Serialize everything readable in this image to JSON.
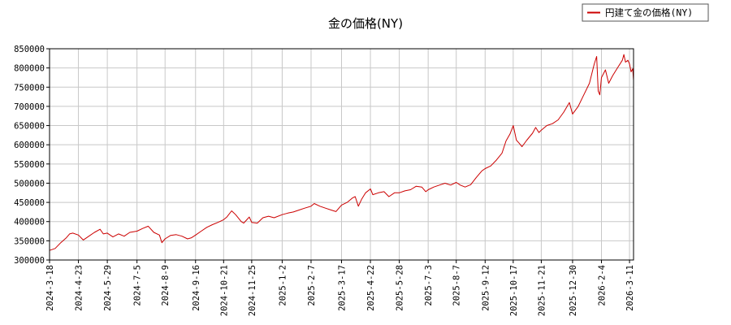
{
  "chart_data": {
    "type": "line",
    "title": "金の価格(NY)",
    "xlabel": "",
    "ylabel": "",
    "ylim": [
      300000,
      850000
    ],
    "yticks": [
      300000,
      350000,
      400000,
      450000,
      500000,
      550000,
      600000,
      650000,
      700000,
      750000,
      800000,
      850000
    ],
    "xlim": [
      "2024-3-18",
      "2026-3-16"
    ],
    "xticks": [
      "2024-3-18",
      "2024-4-23",
      "2024-5-29",
      "2024-7-5",
      "2024-8-9",
      "2024-9-16",
      "2024-10-21",
      "2024-11-25",
      "2025-1-2",
      "2025-2-7",
      "2025-3-17",
      "2025-4-22",
      "2025-5-28",
      "2025-7-3",
      "2025-8-7",
      "2025-9-12",
      "2025-10-17",
      "2025-11-21",
      "2025-12-30",
      "2026-2-4",
      "2026-3-11"
    ],
    "grid": true,
    "legend_position": "top-right",
    "line_color": "#cc0000",
    "series": [
      {
        "name": "円建て金の価格(NY)",
        "points": [
          [
            "2024-3-18",
            325000
          ],
          [
            "2024-3-25",
            330000
          ],
          [
            "2024-4-1",
            345000
          ],
          [
            "2024-4-8",
            358000
          ],
          [
            "2024-4-12",
            368000
          ],
          [
            "2024-4-16",
            370000
          ],
          [
            "2024-4-23",
            365000
          ],
          [
            "2024-4-29",
            352000
          ],
          [
            "2024-5-6",
            362000
          ],
          [
            "2024-5-13",
            372000
          ],
          [
            "2024-5-20",
            380000
          ],
          [
            "2024-5-24",
            368000
          ],
          [
            "2024-5-29",
            370000
          ],
          [
            "2024-6-5",
            360000
          ],
          [
            "2024-6-12",
            368000
          ],
          [
            "2024-6-19",
            362000
          ],
          [
            "2024-6-26",
            372000
          ],
          [
            "2024-7-5",
            375000
          ],
          [
            "2024-7-12",
            382000
          ],
          [
            "2024-7-19",
            388000
          ],
          [
            "2024-7-26",
            372000
          ],
          [
            "2024-8-2",
            365000
          ],
          [
            "2024-8-5",
            345000
          ],
          [
            "2024-8-9",
            355000
          ],
          [
            "2024-8-16",
            364000
          ],
          [
            "2024-8-23",
            366000
          ],
          [
            "2024-8-30",
            362000
          ],
          [
            "2024-9-6",
            355000
          ],
          [
            "2024-9-11",
            358000
          ],
          [
            "2024-9-16",
            365000
          ],
          [
            "2024-9-23",
            375000
          ],
          [
            "2024-9-30",
            385000
          ],
          [
            "2024-10-7",
            392000
          ],
          [
            "2024-10-14",
            398000
          ],
          [
            "2024-10-21",
            405000
          ],
          [
            "2024-10-25",
            412000
          ],
          [
            "2024-10-31",
            428000
          ],
          [
            "2024-11-5",
            418000
          ],
          [
            "2024-11-12",
            400000
          ],
          [
            "2024-11-15",
            396000
          ],
          [
            "2024-11-22",
            412000
          ],
          [
            "2024-11-25",
            398000
          ],
          [
            "2024-12-2",
            396000
          ],
          [
            "2024-12-9",
            410000
          ],
          [
            "2024-12-16",
            414000
          ],
          [
            "2024-12-23",
            410000
          ],
          [
            "2025-1-2",
            418000
          ],
          [
            "2025-1-9",
            422000
          ],
          [
            "2025-1-16",
            425000
          ],
          [
            "2025-1-23",
            430000
          ],
          [
            "2025-1-30",
            435000
          ],
          [
            "2025-2-7",
            440000
          ],
          [
            "2025-2-11",
            447000
          ],
          [
            "2025-2-18",
            440000
          ],
          [
            "2025-2-25",
            435000
          ],
          [
            "2025-3-4",
            430000
          ],
          [
            "2025-3-10",
            426000
          ],
          [
            "2025-3-17",
            443000
          ],
          [
            "2025-3-24",
            450000
          ],
          [
            "2025-3-31",
            462000
          ],
          [
            "2025-4-3",
            465000
          ],
          [
            "2025-4-7",
            440000
          ],
          [
            "2025-4-11",
            458000
          ],
          [
            "2025-4-16",
            475000
          ],
          [
            "2025-4-22",
            485000
          ],
          [
            "2025-4-25",
            470000
          ],
          [
            "2025-5-2",
            475000
          ],
          [
            "2025-5-9",
            478000
          ],
          [
            "2025-5-15",
            465000
          ],
          [
            "2025-5-22",
            475000
          ],
          [
            "2025-5-28",
            475000
          ],
          [
            "2025-6-4",
            480000
          ],
          [
            "2025-6-11",
            483000
          ],
          [
            "2025-6-18",
            492000
          ],
          [
            "2025-6-25",
            490000
          ],
          [
            "2025-6-30",
            478000
          ],
          [
            "2025-7-3",
            483000
          ],
          [
            "2025-7-10",
            490000
          ],
          [
            "2025-7-17",
            495000
          ],
          [
            "2025-7-24",
            500000
          ],
          [
            "2025-7-31",
            495000
          ],
          [
            "2025-8-7",
            502000
          ],
          [
            "2025-8-12",
            495000
          ],
          [
            "2025-8-18",
            490000
          ],
          [
            "2025-8-25",
            496000
          ],
          [
            "2025-9-1",
            515000
          ],
          [
            "2025-9-8",
            532000
          ],
          [
            "2025-9-12",
            538000
          ],
          [
            "2025-9-19",
            545000
          ],
          [
            "2025-9-26",
            560000
          ],
          [
            "2025-10-3",
            578000
          ],
          [
            "2025-10-8",
            610000
          ],
          [
            "2025-10-13",
            628000
          ],
          [
            "2025-10-17",
            650000
          ],
          [
            "2025-10-21",
            612000
          ],
          [
            "2025-10-24",
            605000
          ],
          [
            "2025-10-28",
            595000
          ],
          [
            "2025-11-3",
            612000
          ],
          [
            "2025-11-10",
            630000
          ],
          [
            "2025-11-14",
            645000
          ],
          [
            "2025-11-18",
            632000
          ],
          [
            "2025-11-21",
            638000
          ],
          [
            "2025-11-28",
            650000
          ],
          [
            "2025-12-5",
            655000
          ],
          [
            "2025-12-12",
            665000
          ],
          [
            "2025-12-19",
            685000
          ],
          [
            "2025-12-26",
            710000
          ],
          [
            "2025-12-30",
            680000
          ],
          [
            "2026-1-6",
            700000
          ],
          [
            "2026-1-13",
            730000
          ],
          [
            "2026-1-20",
            760000
          ],
          [
            "2026-1-26",
            810000
          ],
          [
            "2026-1-29",
            830000
          ],
          [
            "2026-1-31",
            740000
          ],
          [
            "2026-2-2",
            730000
          ],
          [
            "2026-2-4",
            775000
          ],
          [
            "2026-2-9",
            795000
          ],
          [
            "2026-2-13",
            760000
          ],
          [
            "2026-2-18",
            780000
          ],
          [
            "2026-2-24",
            800000
          ],
          [
            "2026-3-2",
            820000
          ],
          [
            "2026-3-4",
            835000
          ],
          [
            "2026-3-6",
            815000
          ],
          [
            "2026-3-9",
            820000
          ],
          [
            "2026-3-11",
            810000
          ],
          [
            "2026-3-13",
            790000
          ],
          [
            "2026-3-15",
            798000
          ],
          [
            "2026-3-16",
            768000
          ]
        ]
      }
    ]
  }
}
